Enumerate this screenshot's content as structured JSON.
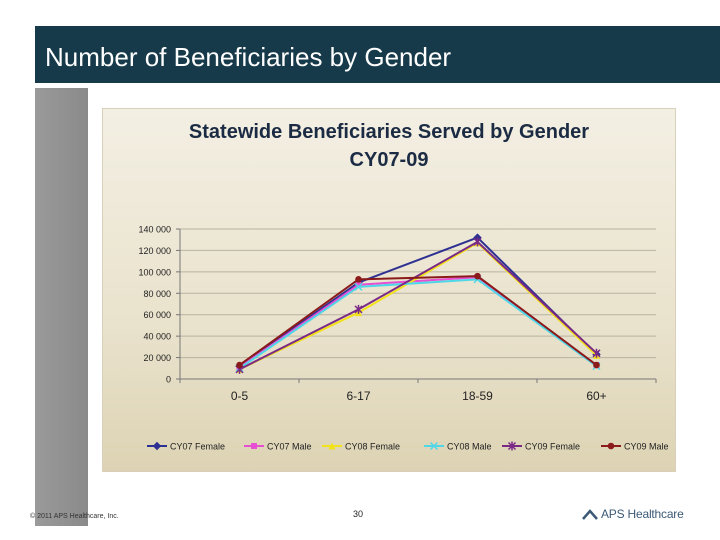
{
  "slide": {
    "title": "Number of Beneficiaries by Gender",
    "footer_left": "© 2011 APS Healthcare, Inc.",
    "page_number": "30",
    "logo_text": "APS Healthcare"
  },
  "colors": {
    "title_bar": "#163a4a",
    "CY07 Female": "#2e3192",
    "CY07 Male": "#e64fd3",
    "CY08 Female": "#f2e21a",
    "CY08 Male": "#4fd7e8",
    "CY09 Female": "#7a2a86",
    "CY09 Male": "#8b1a1a"
  },
  "chart_data": {
    "type": "line",
    "title": "Statewide Beneficiaries Served by Gender",
    "subtitle": "CY07-09",
    "categories": [
      "0-5",
      "6-17",
      "18-59",
      "60+"
    ],
    "y_ticks": [
      "0",
      "20 000",
      "40 000",
      "60 000",
      "80 000",
      "100 000",
      "120 000",
      "140 000"
    ],
    "ylim": [
      0,
      140000
    ],
    "grid": true,
    "legend_position": "bottom",
    "series": [
      {
        "name": "CY07 Female",
        "values": [
          12000,
          90000,
          132000,
          23000
        ],
        "marker": "diamond"
      },
      {
        "name": "CY07 Male",
        "values": [
          11000,
          88000,
          95000,
          13000
        ],
        "marker": "square"
      },
      {
        "name": "CY08 Female",
        "values": [
          9000,
          62000,
          127000,
          22000
        ],
        "marker": "triangle"
      },
      {
        "name": "CY08 Male",
        "values": [
          10000,
          86000,
          93000,
          12000
        ],
        "marker": "x"
      },
      {
        "name": "CY09 Female",
        "values": [
          9000,
          65000,
          128000,
          24000
        ],
        "marker": "star"
      },
      {
        "name": "CY09 Male",
        "values": [
          13000,
          93000,
          96000,
          13000
        ],
        "marker": "circle"
      }
    ]
  }
}
